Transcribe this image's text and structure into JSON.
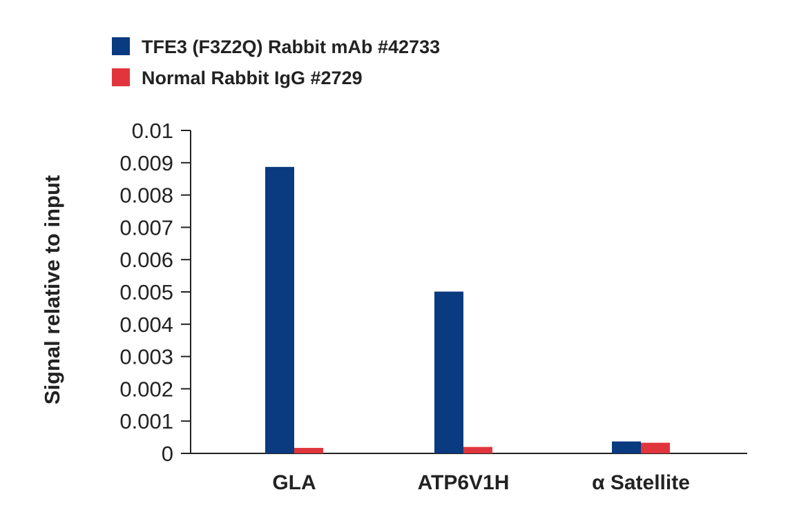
{
  "chart_data": {
    "type": "bar",
    "ylabel": "Signal relative to input",
    "categories": [
      "GLA",
      "ATP6V1H",
      "α Satellite"
    ],
    "series": [
      {
        "name": "TFE3 (F3Z2Q) Rabbit mAb #42733",
        "color": "#0a3a7f",
        "values": [
          0.00887,
          0.00501,
          0.00037
        ]
      },
      {
        "name": "Normal Rabbit IgG #2729",
        "color": "#e0353c",
        "values": [
          0.00017,
          0.0002,
          0.00033
        ]
      }
    ],
    "ylim": [
      0,
      0.01
    ],
    "yticks": [
      "0",
      "0.001",
      "0.002",
      "0.003",
      "0.004",
      "0.005",
      "0.006",
      "0.007",
      "0.008",
      "0.009",
      "0.01"
    ],
    "grid": false,
    "legend_position": "top-left"
  }
}
